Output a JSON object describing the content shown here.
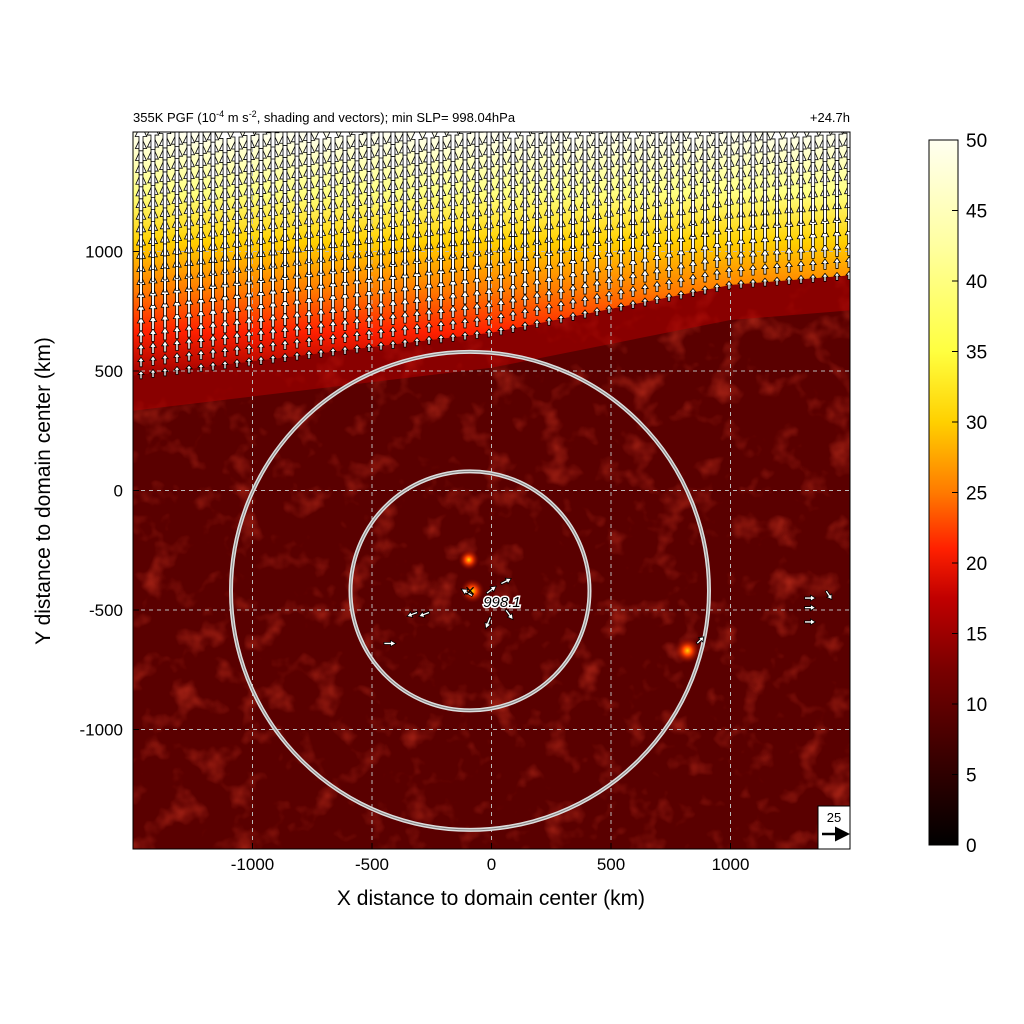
{
  "figure": {
    "title_left_prefix": "355K PGF (10",
    "title_left_exp1": "-4",
    "title_left_mid": " m s",
    "title_left_exp2": "-2",
    "title_left_suffix": ", shading and vectors); min SLP= 998.04hPa",
    "title_right": "+24.7h"
  },
  "chart_data": {
    "type": "heatmap",
    "xlabel": "X distance to domain center (km)",
    "ylabel": "Y distance to domain center (km)",
    "xlim": [
      -1500,
      1500
    ],
    "ylim": [
      -1500,
      1500
    ],
    "xticks": [
      -1000,
      -500,
      0,
      500,
      1000
    ],
    "yticks": [
      -1000,
      -500,
      0,
      500,
      1000
    ],
    "grid": true,
    "grid_style": "dashed",
    "colorbar": {
      "min": 0,
      "max": 50,
      "ticks": [
        0,
        5,
        10,
        15,
        20,
        25,
        30,
        35,
        40,
        45,
        50
      ],
      "colormap": [
        "#000000",
        "#3a0000",
        "#7a0000",
        "#c00000",
        "#ff2000",
        "#ff7a00",
        "#ffd000",
        "#ffff40",
        "#fffff0"
      ]
    },
    "field_bands": [
      {
        "x": -1500,
        "y_low": 480,
        "y_high": 1500,
        "value_top": 50,
        "value_low": 14
      },
      {
        "x": -1000,
        "y_low": 540,
        "y_high": 1500,
        "value_top": 50,
        "value_low": 14
      },
      {
        "x": -500,
        "y_low": 600,
        "y_high": 1500,
        "value_top": 50,
        "value_low": 12
      },
      {
        "x": 0,
        "y_low": 660,
        "y_high": 1500,
        "value_top": 50,
        "value_low": 12
      },
      {
        "x": 500,
        "y_low": 760,
        "y_high": 1500,
        "value_top": 50,
        "value_low": 12
      },
      {
        "x": 1000,
        "y_low": 860,
        "y_high": 1500,
        "value_top": 50,
        "value_low": 12
      },
      {
        "x": 1500,
        "y_low": 900,
        "y_high": 1500,
        "value_top": 50,
        "value_low": 12
      }
    ],
    "hotspots": [
      {
        "x": -80,
        "y": -420,
        "value": 25
      },
      {
        "x": 820,
        "y": -670,
        "value": 28
      },
      {
        "x": -95,
        "y": -290,
        "value": 18
      }
    ],
    "rings": {
      "center": [
        -90,
        -420
      ],
      "radii_km": [
        500,
        1000
      ]
    },
    "center_marker": {
      "x": -90,
      "y": -420,
      "symbol": "×",
      "label": "998.1"
    },
    "vectors": {
      "region": "y > 600",
      "direction": "north",
      "max_value": 50,
      "isolated": [
        {
          "x": -80,
          "y": -440,
          "u": -10,
          "v": 6
        },
        {
          "x": -20,
          "y": -430,
          "u": 8,
          "v": 6
        },
        {
          "x": 40,
          "y": -390,
          "u": 8,
          "v": 4
        },
        {
          "x": 60,
          "y": -500,
          "u": 6,
          "v": -8
        },
        {
          "x": -5,
          "y": -530,
          "u": -4,
          "v": -10
        },
        {
          "x": -310,
          "y": -510,
          "u": -8,
          "v": -3
        },
        {
          "x": -260,
          "y": -510,
          "u": -8,
          "v": -3
        },
        {
          "x": -450,
          "y": -640,
          "u": 10,
          "v": 0
        },
        {
          "x": 1310,
          "y": -450,
          "u": 8,
          "v": 0
        },
        {
          "x": 1310,
          "y": -490,
          "u": 8,
          "v": 0
        },
        {
          "x": 1310,
          "y": -550,
          "u": 8,
          "v": 0
        },
        {
          "x": 1400,
          "y": -420,
          "u": 4,
          "v": -6
        },
        {
          "x": 860,
          "y": -640,
          "u": 4,
          "v": 4
        }
      ]
    },
    "reference_vector": {
      "label": "25",
      "value": 25
    }
  }
}
